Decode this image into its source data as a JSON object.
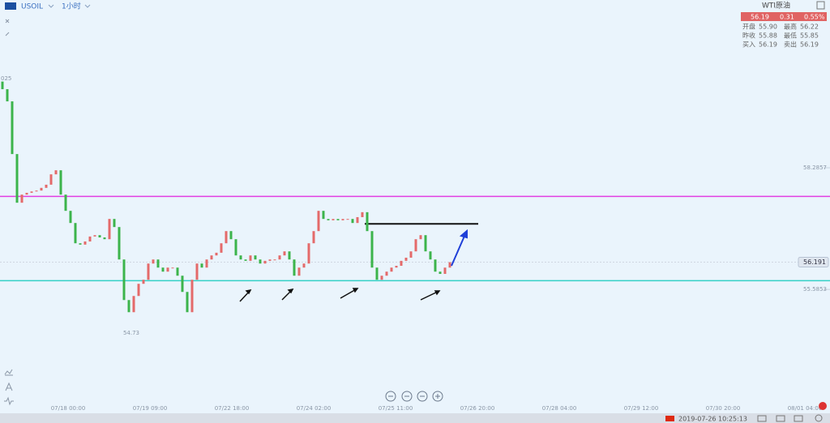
{
  "header": {
    "symbol": "USOIL",
    "interval": "1小时"
  },
  "quote": {
    "name": "WTI原油",
    "price": "56.19",
    "change": "0.31",
    "change_pct": "0.55%",
    "rows": [
      [
        "开盘",
        "55.90",
        "最高",
        "56.22"
      ],
      [
        "昨收",
        "55.88",
        "最低",
        "55.85"
      ],
      [
        "买入",
        "56.19",
        "卖出",
        "56.19"
      ]
    ]
  },
  "status": {
    "time": "2019-07-26 10:25:13"
  },
  "chart_data": {
    "type": "candlestick",
    "first_open": 60.2,
    "closes": [
      60.03,
      59.76,
      58.59,
      57.51,
      57.69,
      57.73,
      57.76,
      57.78,
      57.84,
      57.91,
      58.14,
      58.23,
      57.69,
      57.33,
      57.06,
      56.61,
      56.58,
      56.65,
      56.76,
      56.79,
      56.74,
      56.7,
      57.15,
      56.97,
      56.25,
      55.35,
      55.08,
      55.44,
      55.71,
      55.8,
      56.16,
      56.25,
      56.07,
      55.98,
      56.07,
      56.07,
      55.89,
      55.53,
      55.08,
      55.8,
      56.16,
      56.07,
      56.25,
      56.34,
      56.4,
      56.61,
      56.88,
      56.7,
      56.34,
      56.25,
      56.22,
      56.34,
      56.25,
      56.16,
      56.22,
      56.25,
      56.25,
      56.34,
      56.43,
      56.25,
      55.89,
      56.07,
      56.16,
      56.61,
      56.88,
      57.33,
      57.15,
      57.12,
      57.15,
      57.12,
      57.15,
      57.15,
      57.06,
      57.19,
      57.3,
      56.88,
      56.07,
      55.8,
      55.89,
      55.98,
      56.07,
      56.11,
      56.22,
      56.29,
      56.43,
      56.7,
      56.79,
      56.43,
      56.25,
      55.98,
      55.93,
      56.07,
      56.19
    ],
    "up_color": "#e46a6a",
    "down_color": "#3cb44b",
    "ylim": [
      53.07,
      62.01
    ],
    "yticks": [
      58.2857,
      55.5853
    ],
    "top_label": "025",
    "low_label": "54.73",
    "last_price": 56.191,
    "x_labels": [
      "07/18 00:00",
      "07/19 09:00",
      "07/22 18:00",
      "07/24 02:00",
      "07/25 11:00",
      "07/26 20:00",
      "07/28 04:00",
      "07/29 12:00",
      "07/30 20:00",
      "08/01 04:00"
    ],
    "lines": [
      {
        "value": 57.65,
        "color": "#e23fe2"
      },
      {
        "value": 55.78,
        "color": "#33d1c6"
      },
      {
        "value": 57.04,
        "color": "#111111"
      }
    ]
  }
}
